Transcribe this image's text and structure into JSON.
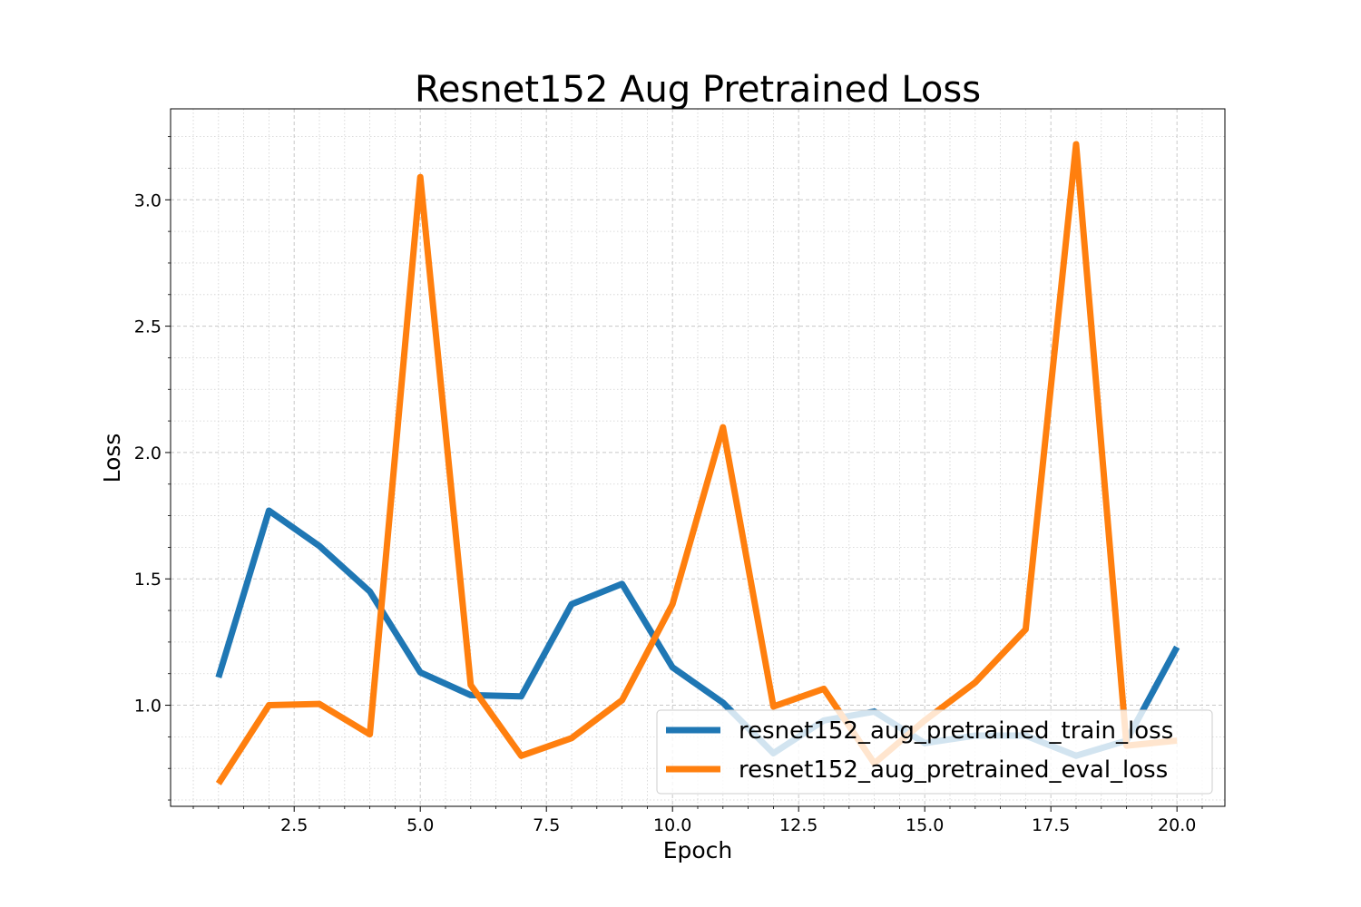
{
  "chart_data": {
    "type": "line",
    "title": "Resnet152 Aug Pretrained Loss",
    "xlabel": "Epoch",
    "ylabel": "Loss",
    "xlim": [
      0.05,
      20.95
    ],
    "ylim": [
      0.6,
      3.36
    ],
    "xticks": [
      2.5,
      5.0,
      7.5,
      10.0,
      12.5,
      15.0,
      17.5,
      20.0
    ],
    "xtick_labels": [
      "2.5",
      "5.0",
      "7.5",
      "10.0",
      "12.5",
      "15.0",
      "17.5",
      "20.0"
    ],
    "yticks": [
      1.0,
      1.5,
      2.0,
      2.5,
      3.0
    ],
    "ytick_labels": [
      "1.0",
      "1.5",
      "2.0",
      "2.5",
      "3.0"
    ],
    "x_minor_step": 0.5,
    "y_minor_step": 0.125,
    "grid": true,
    "legend_position": "lower-right",
    "x": [
      1,
      2,
      3,
      4,
      5,
      6,
      7,
      8,
      9,
      10,
      11,
      12,
      13,
      14,
      15,
      16,
      17,
      18,
      19,
      20
    ],
    "series": [
      {
        "name": "resnet152_aug_pretrained_train_loss",
        "color": "#1f77b4",
        "values": [
          1.11,
          1.77,
          1.63,
          1.45,
          1.13,
          1.04,
          1.035,
          1.4,
          1.48,
          1.15,
          1.01,
          0.81,
          0.94,
          0.975,
          0.85,
          0.88,
          0.88,
          0.8,
          0.86,
          1.23
        ]
      },
      {
        "name": "resnet152_aug_pretrained_eval_loss",
        "color": "#ff7f0e",
        "values": [
          0.69,
          1.0,
          1.005,
          0.885,
          3.09,
          1.08,
          0.8,
          0.87,
          1.02,
          1.4,
          2.1,
          0.995,
          1.065,
          0.77,
          0.94,
          1.09,
          1.3,
          3.22,
          0.84,
          0.86
        ]
      }
    ]
  }
}
